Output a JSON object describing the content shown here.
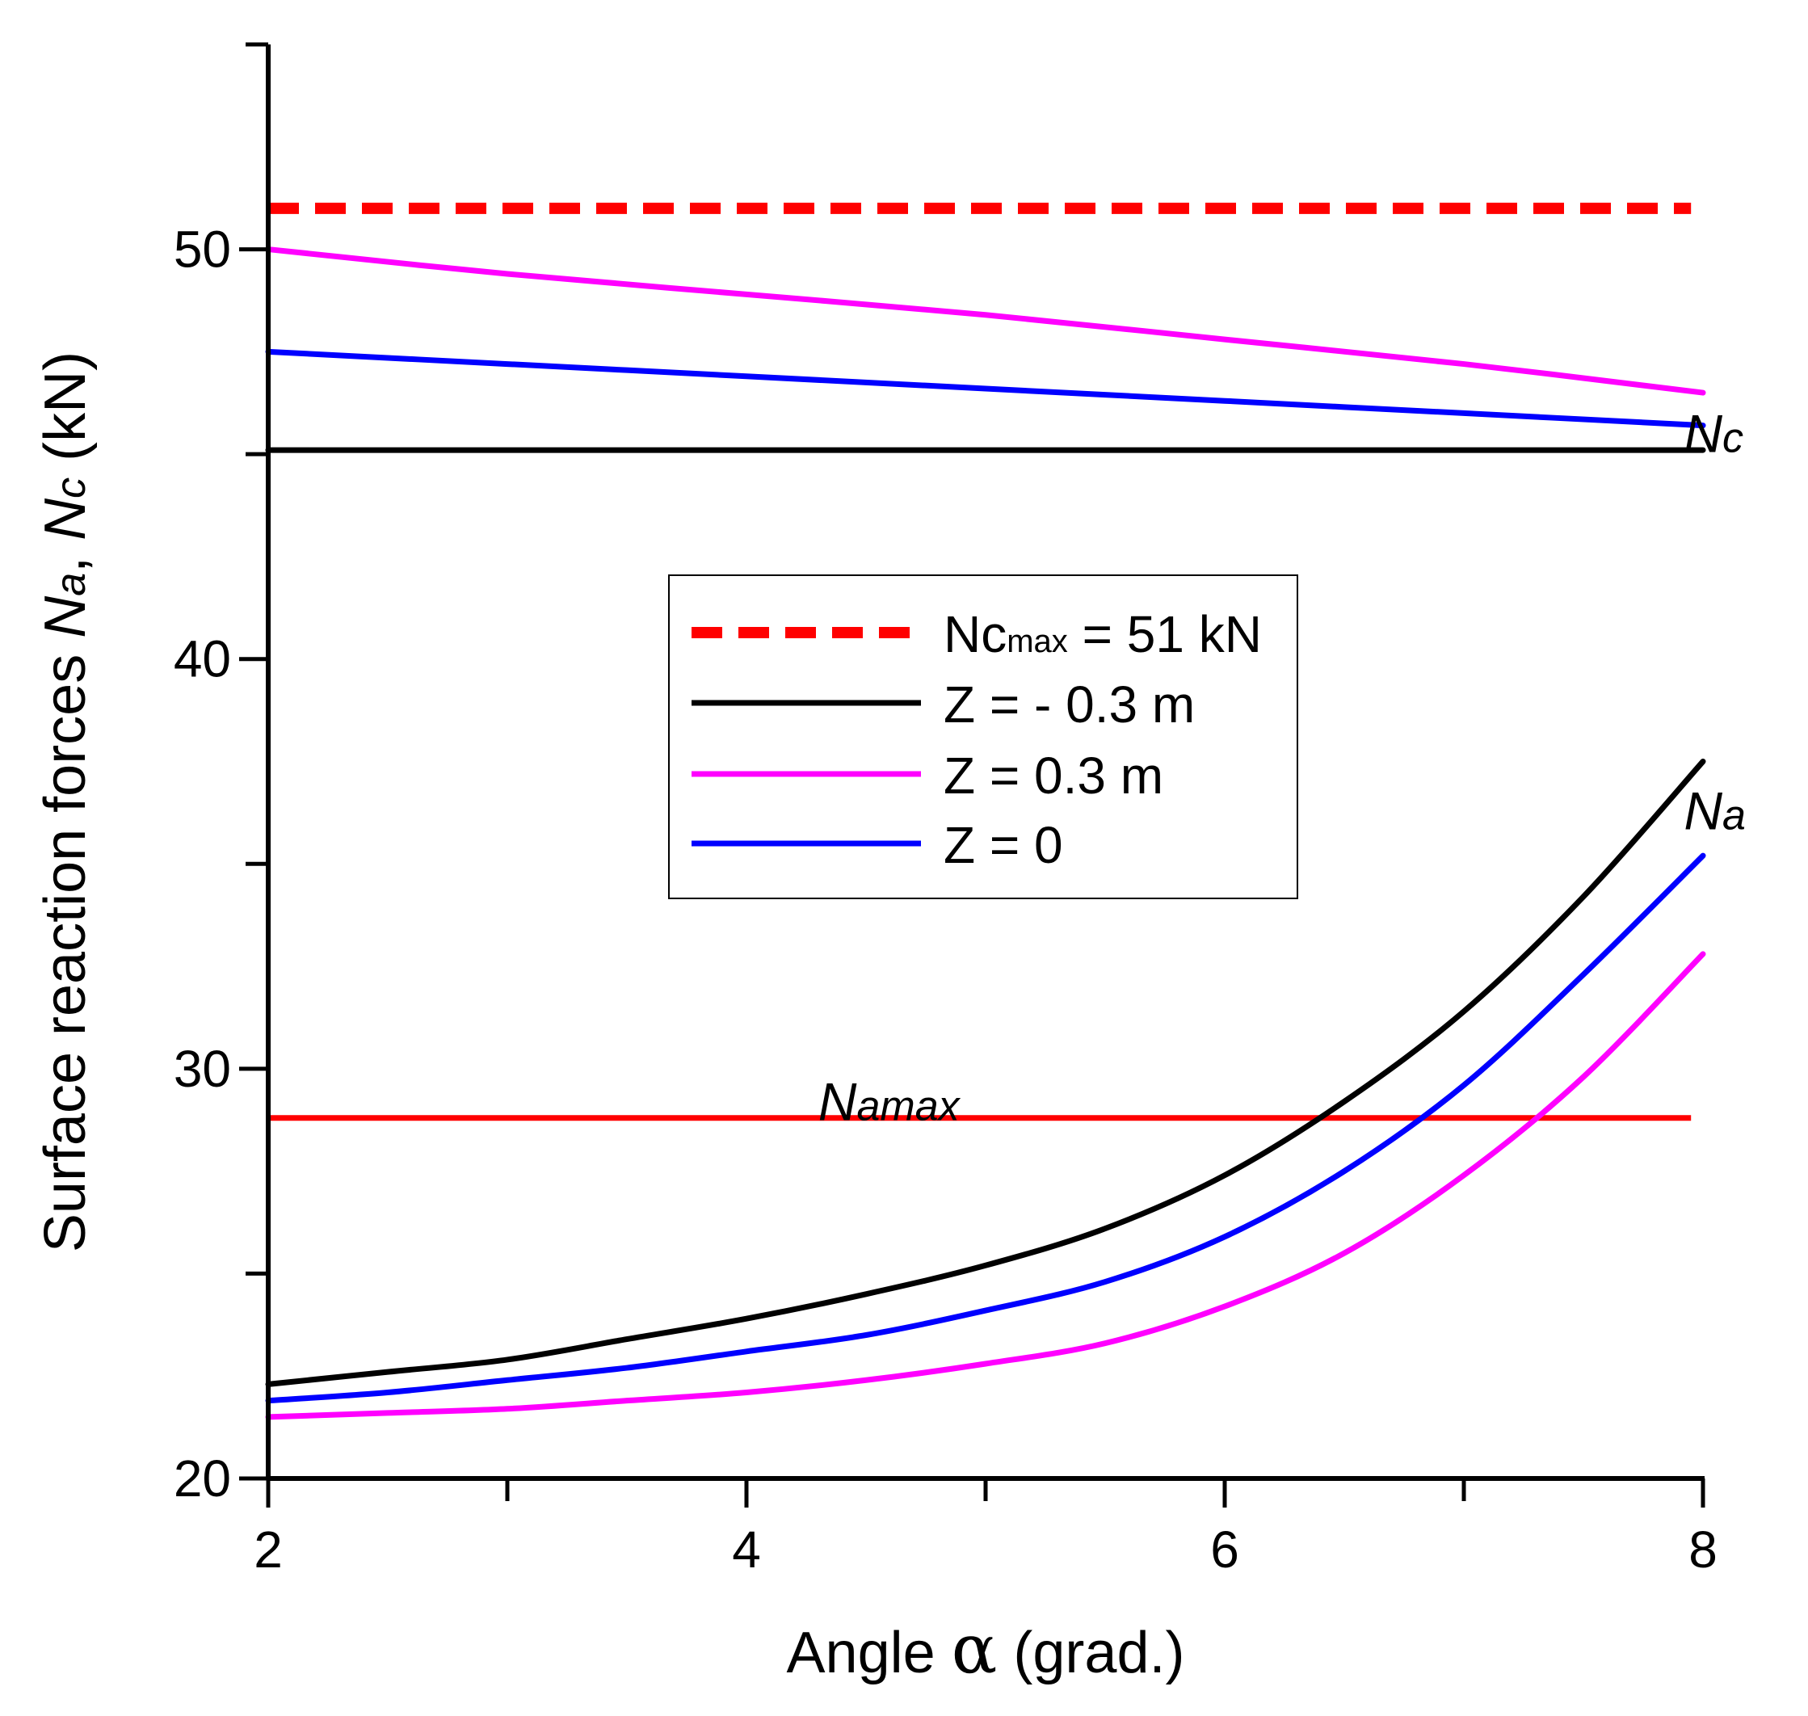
{
  "chart_data": {
    "type": "line",
    "title": "",
    "xlabel_prefix": "Angle ",
    "xlabel_symbol": "α",
    "xlabel_suffix": " (grad.)",
    "ylabel_prefix": "Surface reaction forces ",
    "ylabel_na_main": "N",
    "ylabel_na_sub": "a",
    "ylabel_sep": ", ",
    "ylabel_nc_main": "N",
    "ylabel_nc_sub": "c",
    "ylabel_suffix": " (kN)",
    "xlim": [
      2,
      8
    ],
    "ylim": [
      20,
      55
    ],
    "x_ticks_labeled": [
      "2",
      "4",
      "6",
      "8"
    ],
    "x_ticks_major": [
      2,
      4,
      6,
      8
    ],
    "x_ticks_minor": [
      3,
      5,
      7
    ],
    "y_ticks_labeled": [
      "20",
      "30",
      "40",
      "50"
    ],
    "y_ticks_major": [
      20,
      30,
      40,
      50
    ],
    "y_ticks_minor": [
      25,
      35,
      45,
      55
    ],
    "grid": false,
    "legend_position": "center",
    "legend": [
      {
        "label_main": "Nc",
        "label_sub": "max",
        "label_rest": " = 51 kN",
        "color": "#ff0000",
        "dashed": true
      },
      {
        "label_main": "Z = - 0.3 m",
        "color": "#000000",
        "dashed": false
      },
      {
        "label_main": "Z = 0.3 m",
        "color": "#ff00ff",
        "dashed": false
      },
      {
        "label_main": "Z = 0",
        "color": "#0000ff",
        "dashed": false
      }
    ],
    "reference_lines": [
      {
        "name": "Nc_max",
        "y": 51,
        "x_range": [
          2,
          7.95
        ],
        "color": "#ff0000",
        "dashed": true
      },
      {
        "name": "Na_max",
        "y": 28.8,
        "x_range": [
          2,
          7.95
        ],
        "color": "#ff0000",
        "dashed": false
      }
    ],
    "series": [
      {
        "name": "Nc, Z = -0.3 m",
        "group": "Nc",
        "color": "#000000",
        "x": [
          2,
          8
        ],
        "y": [
          45.1,
          45.1
        ]
      },
      {
        "name": "Nc, Z = 0.3 m",
        "group": "Nc",
        "color": "#ff00ff",
        "x": [
          2,
          3,
          4,
          5,
          6,
          7,
          8
        ],
        "y": [
          50.0,
          49.4,
          48.9,
          48.4,
          47.8,
          47.2,
          46.5
        ]
      },
      {
        "name": "Nc, Z = 0",
        "group": "Nc",
        "color": "#0000ff",
        "x": [
          2,
          3,
          4,
          5,
          6,
          7,
          8
        ],
        "y": [
          47.5,
          47.2,
          46.9,
          46.6,
          46.3,
          46.0,
          45.7
        ]
      },
      {
        "name": "Na, Z = -0.3 m",
        "group": "Na",
        "color": "#000000",
        "x": [
          2,
          2.5,
          3,
          3.5,
          4,
          4.5,
          5,
          5.5,
          6,
          6.5,
          7,
          7.5,
          8
        ],
        "y": [
          22.3,
          22.6,
          22.9,
          23.4,
          23.9,
          24.5,
          25.2,
          26.1,
          27.4,
          29.2,
          31.4,
          34.2,
          37.5
        ]
      },
      {
        "name": "Na, Z = 0.3 m",
        "group": "Na",
        "color": "#ff00ff",
        "x": [
          2,
          2.5,
          3,
          3.5,
          4,
          4.5,
          5,
          5.5,
          6,
          6.5,
          7,
          7.5,
          8
        ],
        "y": [
          21.5,
          21.6,
          21.7,
          21.9,
          22.1,
          22.4,
          22.8,
          23.3,
          24.2,
          25.5,
          27.4,
          29.8,
          32.8
        ]
      },
      {
        "name": "Na, Z = 0",
        "group": "Na",
        "color": "#0000ff",
        "x": [
          2,
          2.5,
          3,
          3.5,
          4,
          4.5,
          5,
          5.5,
          6,
          6.5,
          7,
          7.5,
          8
        ],
        "y": [
          21.9,
          22.1,
          22.4,
          22.7,
          23.1,
          23.5,
          24.1,
          24.8,
          25.9,
          27.5,
          29.6,
          32.3,
          35.2
        ]
      }
    ],
    "annotations": [
      {
        "name": "nc-label",
        "main": "N",
        "sub": "c",
        "x": 7.92,
        "y": 45.6
      },
      {
        "name": "na-label",
        "main": "N",
        "sub": "a",
        "x": 7.92,
        "y": 36.4
      },
      {
        "name": "namax-label",
        "main": "N",
        "sub": "amax",
        "x": 4.3,
        "y": 29.3
      }
    ]
  }
}
